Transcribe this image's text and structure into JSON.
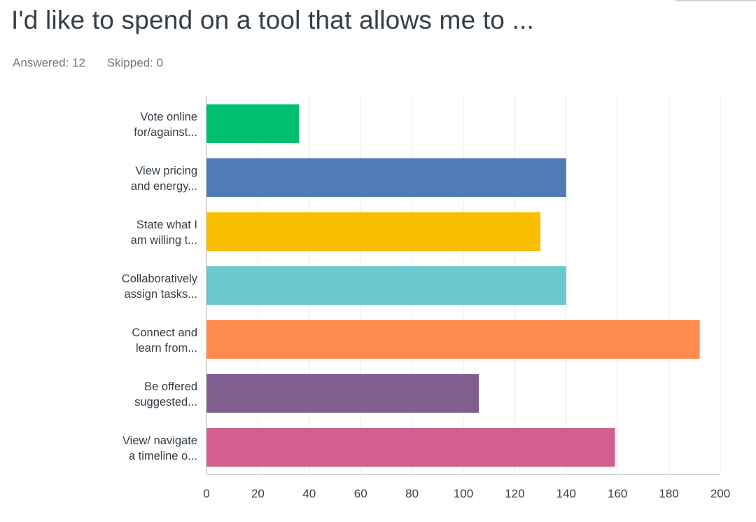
{
  "title": "I'd like to spend on a tool that allows me to ...",
  "stats": {
    "answered": "Answered: 12",
    "skipped": "Skipped: 0"
  },
  "chart_data": {
    "type": "bar",
    "orientation": "horizontal",
    "categories": [
      [
        "Vote online",
        "for/against..."
      ],
      [
        "View pricing",
        "and energy..."
      ],
      [
        "State what I",
        "am willing t..."
      ],
      [
        "Collaboratively",
        "assign tasks..."
      ],
      [
        "Connect and",
        "learn from..."
      ],
      [
        "Be offered",
        "suggested..."
      ],
      [
        "View/ navigate",
        "a timeline o..."
      ]
    ],
    "values": [
      36,
      140,
      130,
      140,
      192,
      106,
      159
    ],
    "colors": [
      "#00bf6f",
      "#507cb6",
      "#f9be00",
      "#6bc8cd",
      "#ff8b4f",
      "#7f5f90",
      "#d25f90"
    ],
    "xlim": [
      0,
      200
    ],
    "xticks": [
      "0",
      "20",
      "40",
      "60",
      "80",
      "100",
      "120",
      "140",
      "160",
      "180",
      "200"
    ],
    "grid": true
  }
}
